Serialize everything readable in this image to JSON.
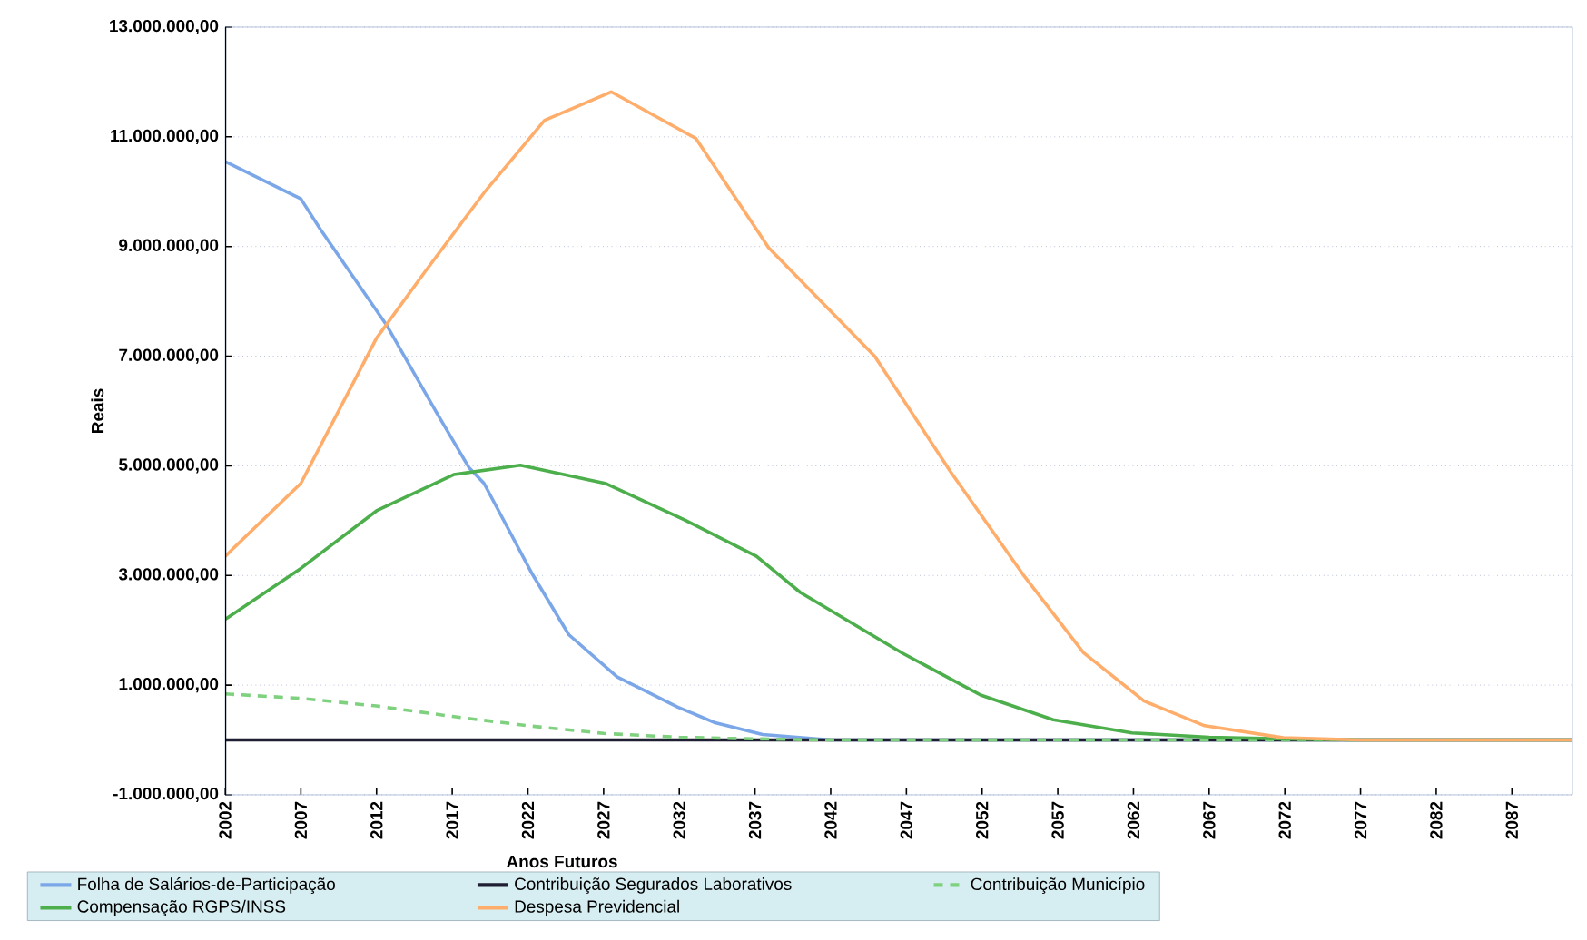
{
  "chart_data": {
    "type": "line",
    "xlabel": "Anos Futuros",
    "ylabel": "Reais",
    "xlim": [
      2002,
      2091
    ],
    "xticks": [
      2002,
      2007,
      2012,
      2017,
      2022,
      2027,
      2032,
      2037,
      2042,
      2047,
      2052,
      2057,
      2062,
      2067,
      2072,
      2077,
      2082,
      2087
    ],
    "ylim": [
      -1000000,
      13000000
    ],
    "yticks": [
      {
        "value": -1000000,
        "label": "-1.000.000,00"
      },
      {
        "value": 1000000,
        "label": "1.000.000,00"
      },
      {
        "value": 3000000,
        "label": "3.000.000,00"
      },
      {
        "value": 5000000,
        "label": "5.000.000,00"
      },
      {
        "value": 7000000,
        "label": "7.000.000,00"
      },
      {
        "value": 9000000,
        "label": "9.000.000,00"
      },
      {
        "value": 11000000,
        "label": "11.000.000,00"
      },
      {
        "value": 13000000,
        "label": "13.000.000,00"
      }
    ],
    "grid": "y",
    "legend": "bottom",
    "series": [
      {
        "name": "Folha de Salários-de-Participação",
        "color": "#7ba7e8",
        "x": [
          2002,
          2007,
          2008.3,
          2012.7,
          2015.9,
          2018.1,
          2019.1,
          2022.3,
          2024.7,
          2027.9,
          2031.9,
          2034.3,
          2037.5,
          2042,
          2091
        ],
        "values": [
          10550000,
          9870000,
          9310000,
          7550000,
          6000000,
          4970000,
          4680000,
          3020000,
          1920000,
          1150000,
          600000,
          320000,
          100000,
          0,
          0
        ]
      },
      {
        "name": "Contribuição Segurados Laborativos",
        "color": "#1f1f33",
        "x": [
          2002,
          2091
        ],
        "values": [
          0,
          0
        ]
      },
      {
        "name": "Contribuição Município",
        "color": "#7fd17f",
        "line_style": "dashed",
        "x": [
          2002,
          2007,
          2012,
          2017,
          2022,
          2027,
          2032,
          2037,
          2042,
          2091
        ],
        "values": [
          840000,
          760000,
          620000,
          430000,
          260000,
          120000,
          50000,
          20000,
          0,
          0
        ]
      },
      {
        "name": "Compensação RGPS/INSS",
        "color": "#4caf4c",
        "x": [
          2002,
          2007,
          2012,
          2017.1,
          2021.5,
          2027.1,
          2032.3,
          2037.1,
          2040,
          2046.7,
          2051.9,
          2056.7,
          2061.9,
          2067,
          2072,
          2077,
          2091
        ],
        "values": [
          2200000,
          3130000,
          4180000,
          4840000,
          5010000,
          4680000,
          4020000,
          3350000,
          2690000,
          1590000,
          820000,
          370000,
          130000,
          50000,
          20000,
          0,
          0
        ]
      },
      {
        "name": "Despesa Previdencial",
        "color": "#ffad6b",
        "x": [
          2002,
          2007,
          2012,
          2015.2,
          2019.1,
          2023.1,
          2027.5,
          2033.1,
          2037.9,
          2044.9,
          2049.9,
          2054.7,
          2058.7,
          2062.7,
          2066.7,
          2071.9,
          2077,
          2091
        ],
        "values": [
          3350000,
          4680000,
          7330000,
          8540000,
          9980000,
          11300000,
          11820000,
          10970000,
          8980000,
          7000000,
          4900000,
          3020000,
          1590000,
          710000,
          260000,
          40000,
          0,
          0
        ]
      }
    ]
  }
}
